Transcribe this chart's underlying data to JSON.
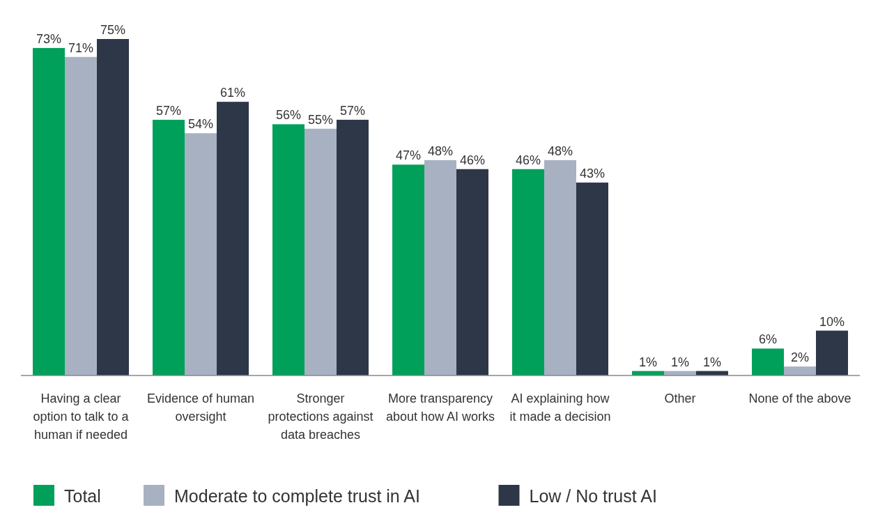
{
  "chart_data": {
    "type": "bar",
    "categories": [
      "Having a clear option to talk to a human if needed",
      "Evidence of human oversight",
      "Stronger protections against data breaches",
      "More transparency about how AI works",
      "AI explaining how it made a decision",
      "Other",
      "None of the above"
    ],
    "series": [
      {
        "name": "Total",
        "color": "#00a05a",
        "values": [
          73,
          57,
          56,
          47,
          46,
          1,
          6
        ],
        "value_labels": [
          "73%",
          "57%",
          "56%",
          "47%",
          "46%",
          "1%",
          "6%"
        ]
      },
      {
        "name": "Moderate to complete trust in AI",
        "color": "#a7b1c2",
        "values": [
          71,
          54,
          55,
          48,
          48,
          1,
          2
        ],
        "value_labels": [
          "71%",
          "54%",
          "55%",
          "48%",
          "48%",
          "1%",
          "2%"
        ]
      },
      {
        "name": "Low / No trust AI",
        "color": "#2d3747",
        "values": [
          75,
          61,
          57,
          46,
          43,
          1,
          10
        ],
        "value_labels": [
          "75%",
          "61%",
          "57%",
          "46%",
          "43%",
          "1%",
          "10%"
        ]
      }
    ],
    "legend": "bottom left"
  }
}
